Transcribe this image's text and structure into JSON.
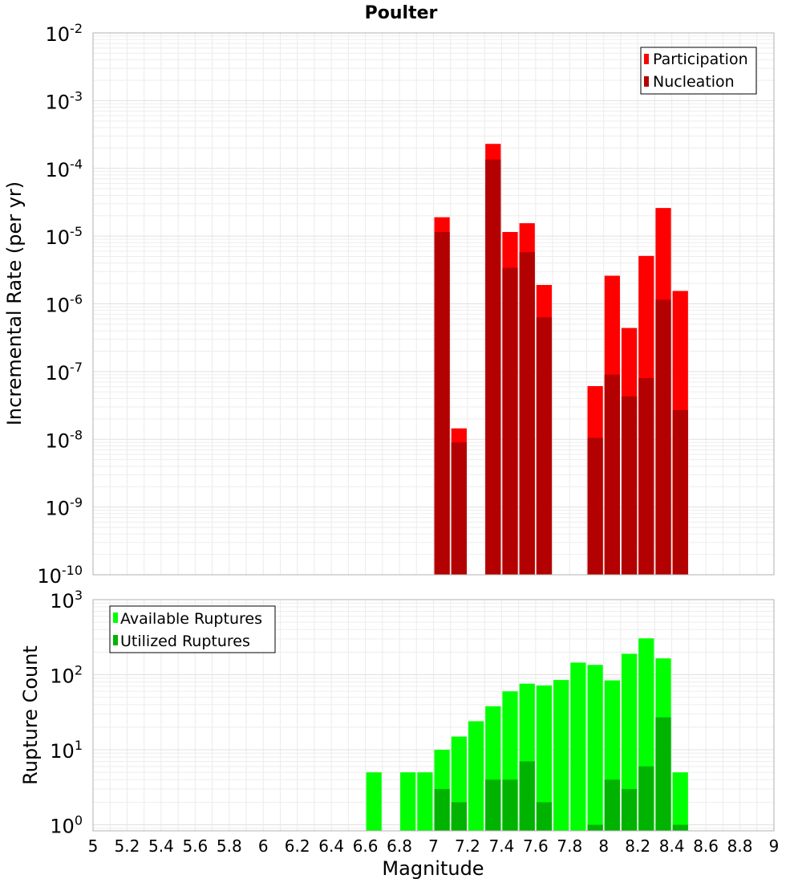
{
  "chart_data": [
    {
      "type": "bar",
      "title": "Poulter",
      "xlabel": "",
      "ylabel": "Incremental Rate (per yr)",
      "yscale": "log",
      "ylim_exponents": [
        -10,
        -2
      ],
      "xlim": [
        5,
        9
      ],
      "bar_width": 0.1,
      "legend_position": "top-right",
      "grid": true,
      "y_tick_labels": [
        {
          "exp": -10,
          "base": "10",
          "sup": "-10"
        },
        {
          "exp": -9,
          "base": "10",
          "sup": "-9"
        },
        {
          "exp": -8,
          "base": "10",
          "sup": "-8"
        },
        {
          "exp": -7,
          "base": "10",
          "sup": "-7"
        },
        {
          "exp": -6,
          "base": "10",
          "sup": "-6"
        },
        {
          "exp": -5,
          "base": "10",
          "sup": "-5"
        },
        {
          "exp": -4,
          "base": "10",
          "sup": "-4"
        },
        {
          "exp": -3,
          "base": "10",
          "sup": "-3"
        },
        {
          "exp": -2,
          "base": "10",
          "sup": "-2"
        }
      ],
      "series": [
        {
          "name": "Participation",
          "color": "#ff0000",
          "points": [
            {
              "x": 7.05,
              "y": 1.9e-05
            },
            {
              "x": 7.15,
              "y": 1.45e-08
            },
            {
              "x": 7.35,
              "y": 0.00023
            },
            {
              "x": 7.45,
              "y": 1.15e-05
            },
            {
              "x": 7.55,
              "y": 1.55e-05
            },
            {
              "x": 7.65,
              "y": 1.9e-06
            },
            {
              "x": 7.95,
              "y": 6.1e-08
            },
            {
              "x": 8.05,
              "y": 2.6e-06
            },
            {
              "x": 8.15,
              "y": 4.4e-07
            },
            {
              "x": 8.25,
              "y": 5.1e-06
            },
            {
              "x": 8.35,
              "y": 2.6e-05
            },
            {
              "x": 8.45,
              "y": 1.55e-06
            }
          ]
        },
        {
          "name": "Nucleation",
          "color": "#b30000",
          "points": [
            {
              "x": 7.05,
              "y": 1.15e-05
            },
            {
              "x": 7.15,
              "y": 9e-09
            },
            {
              "x": 7.35,
              "y": 0.000135
            },
            {
              "x": 7.45,
              "y": 3.4e-06
            },
            {
              "x": 7.55,
              "y": 5.8e-06
            },
            {
              "x": 7.65,
              "y": 6.3e-07
            },
            {
              "x": 7.95,
              "y": 1.05e-08
            },
            {
              "x": 8.05,
              "y": 9e-08
            },
            {
              "x": 8.15,
              "y": 4.3e-08
            },
            {
              "x": 8.25,
              "y": 8e-08
            },
            {
              "x": 8.35,
              "y": 1.15e-06
            },
            {
              "x": 8.45,
              "y": 2.7e-08
            }
          ]
        }
      ]
    },
    {
      "type": "bar",
      "title": "",
      "xlabel": "Magnitude",
      "ylabel": "Rupture Count",
      "yscale": "log",
      "ylim_exponents": [
        -0.08,
        3
      ],
      "xlim": [
        5,
        9
      ],
      "bar_width": 0.1,
      "legend_position": "top-left",
      "grid": true,
      "x_ticks": [
        "5",
        "5.2",
        "5.4",
        "5.6",
        "5.8",
        "6",
        "6.2",
        "6.4",
        "6.6",
        "6.8",
        "7",
        "7.2",
        "7.4",
        "7.6",
        "7.8",
        "8",
        "8.2",
        "8.4",
        "8.6",
        "8.8",
        "9"
      ],
      "y_tick_labels": [
        {
          "exp": 0,
          "base": "10",
          "sup": "0"
        },
        {
          "exp": 1,
          "base": "10",
          "sup": "1"
        },
        {
          "exp": 2,
          "base": "10",
          "sup": "2"
        },
        {
          "exp": 3,
          "base": "10",
          "sup": "3"
        }
      ],
      "series": [
        {
          "name": "Available Ruptures",
          "color": "#00ff00",
          "points": [
            {
              "x": 6.65,
              "y": 5
            },
            {
              "x": 6.85,
              "y": 5
            },
            {
              "x": 6.95,
              "y": 5
            },
            {
              "x": 7.05,
              "y": 10
            },
            {
              "x": 7.15,
              "y": 15
            },
            {
              "x": 7.25,
              "y": 24
            },
            {
              "x": 7.35,
              "y": 38
            },
            {
              "x": 7.45,
              "y": 60
            },
            {
              "x": 7.55,
              "y": 76
            },
            {
              "x": 7.65,
              "y": 72
            },
            {
              "x": 7.75,
              "y": 85
            },
            {
              "x": 7.85,
              "y": 145
            },
            {
              "x": 7.95,
              "y": 135
            },
            {
              "x": 8.05,
              "y": 84
            },
            {
              "x": 8.15,
              "y": 190
            },
            {
              "x": 8.25,
              "y": 305
            },
            {
              "x": 8.35,
              "y": 165
            },
            {
              "x": 8.45,
              "y": 5
            }
          ]
        },
        {
          "name": "Utilized Ruptures",
          "color": "#00b300",
          "points": [
            {
              "x": 7.05,
              "y": 3
            },
            {
              "x": 7.15,
              "y": 2
            },
            {
              "x": 7.35,
              "y": 4
            },
            {
              "x": 7.45,
              "y": 4
            },
            {
              "x": 7.55,
              "y": 7
            },
            {
              "x": 7.65,
              "y": 2
            },
            {
              "x": 7.95,
              "y": 1
            },
            {
              "x": 8.05,
              "y": 4
            },
            {
              "x": 8.15,
              "y": 3
            },
            {
              "x": 8.25,
              "y": 6
            },
            {
              "x": 8.35,
              "y": 27
            },
            {
              "x": 8.45,
              "y": 1
            }
          ]
        }
      ]
    }
  ]
}
